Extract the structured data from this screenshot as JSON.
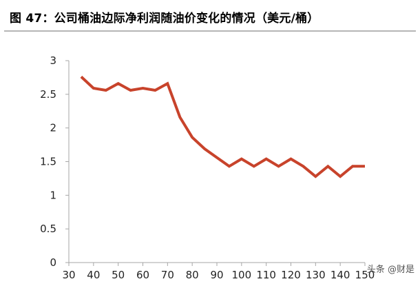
{
  "figure": {
    "title": "图 47：公司桶油边际净利润随油价变化的情况（美元/桶）"
  },
  "watermark": "头条 @财是",
  "chart_data": {
    "type": "line",
    "title": "",
    "xlabel": "",
    "ylabel": "",
    "x": [
      35,
      40,
      45,
      50,
      55,
      60,
      65,
      70,
      75,
      80,
      85,
      90,
      95,
      100,
      105,
      110,
      115,
      120,
      125,
      130,
      135,
      140,
      145,
      150
    ],
    "series": [
      {
        "color": "#c8432b",
        "values": [
          2.76,
          2.59,
          2.56,
          2.66,
          2.56,
          2.59,
          2.56,
          2.66,
          2.16,
          1.86,
          1.69,
          1.56,
          1.43,
          1.54,
          1.43,
          1.54,
          1.43,
          1.54,
          1.43,
          1.28,
          1.43,
          1.28,
          1.43,
          1.43
        ]
      }
    ],
    "xlim": [
      30,
      150
    ],
    "ylim": [
      0,
      3
    ],
    "xticks": [
      "30",
      "40",
      "50",
      "60",
      "70",
      "80",
      "90",
      "100",
      "110",
      "120",
      "130",
      "140",
      "150"
    ],
    "yticks": [
      "0",
      "0.5",
      "1",
      "1.5",
      "2",
      "2.5",
      "3"
    ],
    "grid": false,
    "legend": "none"
  }
}
